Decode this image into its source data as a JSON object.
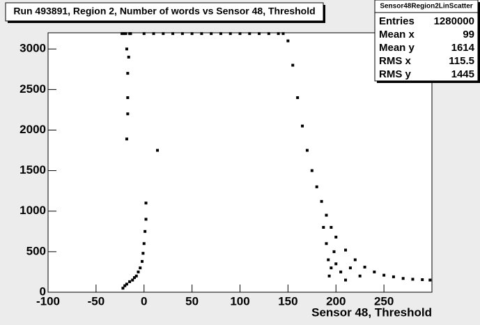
{
  "chart_data": {
    "type": "scatter",
    "title": "Run 493891, Region 2, Number of words vs Sensor 48, Threshold",
    "x_label": "Sensor 48, Threshold",
    "stats": {
      "title": "Sensor48Region2LinScatter",
      "rows": [
        [
          "Entries",
          "1280000"
        ],
        [
          "Mean x",
          "99"
        ],
        [
          "Mean y",
          "1614"
        ],
        [
          "RMS x",
          "115.5"
        ],
        [
          "RMS y",
          "1445"
        ]
      ]
    },
    "color": "#000000",
    "xlim": [
      -100,
      300
    ],
    "ylim": [
      0,
      3200
    ],
    "xticks": [
      -100,
      -50,
      0,
      50,
      100,
      150,
      200,
      250
    ],
    "yticks": [
      0,
      500,
      1000,
      1500,
      2000,
      2500,
      3000
    ],
    "x": [
      -23,
      -21,
      -19,
      -15,
      -14,
      0,
      10,
      20,
      30,
      40,
      50,
      60,
      70,
      80,
      90,
      100,
      110,
      120,
      130,
      140,
      -18,
      -17,
      -17,
      -16,
      -17,
      -18,
      14,
      -22,
      -20,
      -18,
      -15,
      -12,
      -10,
      -8,
      -6,
      -4,
      -2,
      -1,
      0,
      1,
      2,
      2,
      145,
      150,
      155,
      160,
      165,
      170,
      175,
      180,
      185,
      190,
      195,
      200,
      210,
      220,
      230,
      240,
      250,
      260,
      270,
      280,
      290,
      298,
      187,
      190,
      192,
      195,
      193,
      198,
      200,
      205,
      210,
      215,
      225
    ],
    "y": [
      3190,
      3190,
      3190,
      3190,
      3190,
      3190,
      3190,
      3190,
      3190,
      3190,
      3190,
      3190,
      3190,
      3190,
      3190,
      3190,
      3190,
      3190,
      3190,
      3190,
      3000,
      2700,
      2400,
      2900,
      2200,
      1890,
      1750,
      50,
      80,
      100,
      130,
      150,
      180,
      200,
      250,
      300,
      380,
      480,
      600,
      750,
      900,
      1100,
      3190,
      3100,
      2800,
      2400,
      2050,
      1750,
      1500,
      1300,
      1120,
      950,
      800,
      680,
      520,
      400,
      310,
      250,
      210,
      190,
      170,
      160,
      155,
      150,
      800,
      600,
      400,
      300,
      200,
      500,
      350,
      250,
      150,
      300,
      200
    ]
  }
}
